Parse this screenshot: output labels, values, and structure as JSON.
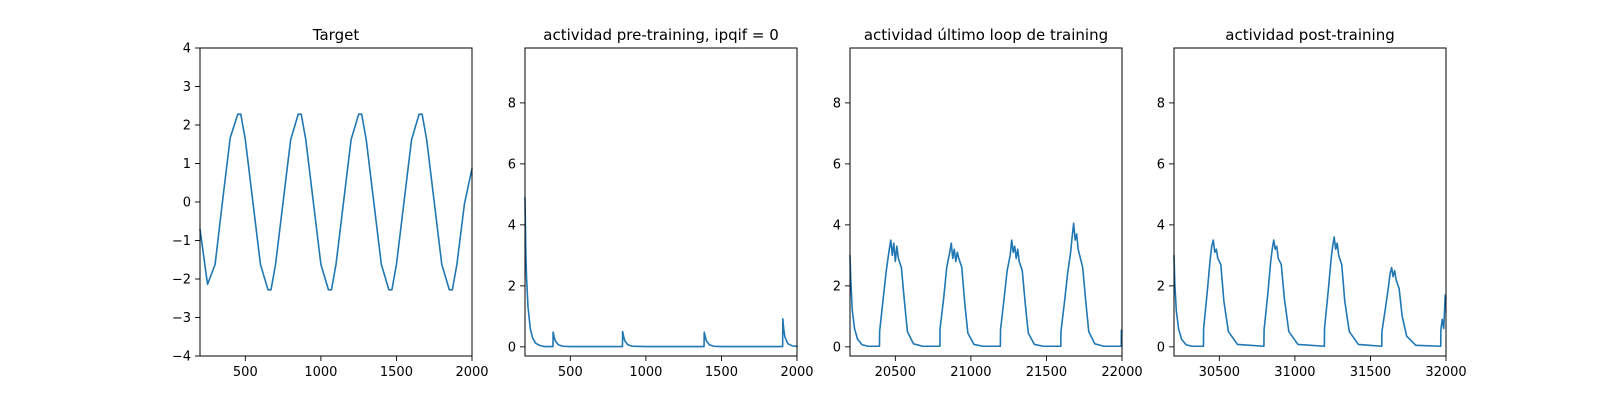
{
  "figure": {
    "background": "#ffffff",
    "line_color": "#1f77b4"
  },
  "chart_data": [
    {
      "type": "line",
      "title": "Target",
      "xlim": [
        200,
        2000
      ],
      "ylim": [
        -4,
        4
      ],
      "xticks": [
        500,
        1000,
        1500,
        2000
      ],
      "xtick_labels": [
        "500",
        "1000",
        "1500",
        "2000"
      ],
      "yticks": [
        -4,
        -3,
        -2,
        -1,
        0,
        1,
        2,
        3,
        4
      ],
      "ytick_labels": [
        "−4",
        "−3",
        "−2",
        "−1",
        "0",
        "1",
        "2",
        "3",
        "4"
      ],
      "grid": false,
      "series": [
        {
          "x": [
            200,
            250,
            300,
            350,
            400,
            450,
            470,
            500,
            550,
            600,
            650,
            670,
            700,
            750,
            800,
            850,
            870,
            900,
            950,
            1000,
            1050,
            1070,
            1100,
            1150,
            1200,
            1250,
            1270,
            1300,
            1350,
            1400,
            1450,
            1470,
            1500,
            1550,
            1600,
            1650,
            1670,
            1700,
            1750,
            1800,
            1850,
            1870,
            1900,
            1950,
            2000
          ],
          "y": [
            -0.71,
            -2.14,
            -1.62,
            0.05,
            1.67,
            2.28,
            2.28,
            1.62,
            0,
            -1.62,
            -2.28,
            -2.28,
            -1.62,
            0,
            1.62,
            2.28,
            2.28,
            1.62,
            0,
            -1.62,
            -2.28,
            -2.28,
            -1.62,
            0,
            1.62,
            2.28,
            2.28,
            1.62,
            0,
            -1.62,
            -2.28,
            -2.28,
            -1.62,
            0,
            1.62,
            2.28,
            2.28,
            1.62,
            0,
            -1.62,
            -2.28,
            -2.28,
            -1.62,
            -0.05,
            0.87
          ]
        }
      ]
    },
    {
      "type": "line",
      "title": "actividad pre-training, ipqif = 0",
      "xlim": [
        200,
        2000
      ],
      "ylim": [
        -0.3,
        9.8
      ],
      "xticks": [
        500,
        1000,
        1500,
        2000
      ],
      "xtick_labels": [
        "500",
        "1000",
        "1500",
        "2000"
      ],
      "yticks": [
        0,
        2,
        4,
        6,
        8
      ],
      "ytick_labels": [
        "0",
        "2",
        "4",
        "6",
        "8"
      ],
      "grid": false,
      "series": [
        {
          "x": [
            200,
            205,
            210,
            220,
            235,
            250,
            270,
            300,
            330,
            385,
            386,
            392,
            400,
            420,
            450,
            500,
            600,
            700,
            845,
            846,
            852,
            860,
            880,
            910,
            1000,
            1100,
            1200,
            1300,
            1385,
            1386,
            1392,
            1400,
            1420,
            1450,
            1500,
            1600,
            1700,
            1800,
            1905,
            1906,
            1912,
            1920,
            1940,
            1970,
            2000
          ],
          "y": [
            4.9,
            3.2,
            2.3,
            1.3,
            0.6,
            0.3,
            0.12,
            0.04,
            0.01,
            0.01,
            0.48,
            0.35,
            0.2,
            0.07,
            0.02,
            0.01,
            0.01,
            0.01,
            0.01,
            0.5,
            0.36,
            0.2,
            0.07,
            0.02,
            0.01,
            0.01,
            0.01,
            0.01,
            0.01,
            0.48,
            0.35,
            0.2,
            0.07,
            0.02,
            0.01,
            0.01,
            0.01,
            0.01,
            0.01,
            0.92,
            0.6,
            0.32,
            0.1,
            0.03,
            0.02
          ]
        }
      ]
    },
    {
      "type": "line",
      "title": "actividad último loop de training",
      "xlim": [
        20200,
        22000
      ],
      "ylim": [
        -0.3,
        9.8
      ],
      "xticks": [
        20500,
        21000,
        21500,
        22000
      ],
      "xtick_labels": [
        "20500",
        "21000",
        "21500",
        "22000"
      ],
      "yticks": [
        0,
        2,
        4,
        6,
        8
      ],
      "ytick_labels": [
        "0",
        "2",
        "4",
        "6",
        "8"
      ],
      "grid": false,
      "series": [
        {
          "x": [
            20200,
            20205,
            20215,
            20230,
            20250,
            20280,
            20320,
            20395,
            20396,
            20420,
            20440,
            20460,
            20470,
            20480,
            20490,
            20500,
            20510,
            20520,
            20540,
            20560,
            20580,
            20620,
            20680,
            20795,
            20796,
            20820,
            20840,
            20860,
            20870,
            20880,
            20890,
            20900,
            20910,
            20920,
            20940,
            20960,
            20980,
            21020,
            21080,
            21195,
            21196,
            21220,
            21240,
            21260,
            21270,
            21280,
            21290,
            21300,
            21310,
            21320,
            21340,
            21360,
            21380,
            21420,
            21480,
            21595,
            21596,
            21620,
            21640,
            21660,
            21670,
            21680,
            21690,
            21700,
            21710,
            21720,
            21740,
            21760,
            21780,
            21820,
            21880,
            21995,
            21996,
            22000
          ],
          "y": [
            3.0,
            2.2,
            1.2,
            0.6,
            0.25,
            0.07,
            0.02,
            0.02,
            0.5,
            1.6,
            2.5,
            3.2,
            3.5,
            3.0,
            3.4,
            2.8,
            3.3,
            2.9,
            2.6,
            1.5,
            0.5,
            0.1,
            0.02,
            0.02,
            0.6,
            1.6,
            2.6,
            3.1,
            3.4,
            2.9,
            3.2,
            2.8,
            3.1,
            2.9,
            2.6,
            1.4,
            0.45,
            0.08,
            0.02,
            0.02,
            0.55,
            1.6,
            2.5,
            3.0,
            3.5,
            3.1,
            3.3,
            2.9,
            3.2,
            2.8,
            2.5,
            1.4,
            0.45,
            0.08,
            0.02,
            0.02,
            0.5,
            1.5,
            2.4,
            3.1,
            3.6,
            4.05,
            3.5,
            3.7,
            3.2,
            3.0,
            2.6,
            1.5,
            0.5,
            0.1,
            0.02,
            0.02,
            0.55,
            0.5
          ]
        }
      ]
    },
    {
      "type": "line",
      "title": "actividad post-training",
      "xlim": [
        30200,
        32000
      ],
      "ylim": [
        -0.3,
        9.8
      ],
      "xticks": [
        30500,
        31000,
        31500,
        32000
      ],
      "xtick_labels": [
        "30500",
        "31000",
        "31500",
        "32000"
      ],
      "yticks": [
        0,
        2,
        4,
        6,
        8
      ],
      "ytick_labels": [
        "0",
        "2",
        "4",
        "6",
        "8"
      ],
      "grid": false,
      "series": [
        {
          "x": [
            30200,
            30205,
            30215,
            30230,
            30250,
            30280,
            30320,
            30395,
            30396,
            30420,
            30440,
            30450,
            30460,
            30470,
            30480,
            30490,
            30510,
            30530,
            30560,
            30620,
            30795,
            30796,
            30820,
            30840,
            30850,
            30860,
            30870,
            30880,
            30890,
            30910,
            30930,
            30960,
            31020,
            31195,
            31196,
            31220,
            31240,
            31250,
            31260,
            31270,
            31280,
            31290,
            31310,
            31330,
            31360,
            31420,
            31575,
            31576,
            31600,
            31620,
            31630,
            31640,
            31650,
            31660,
            31670,
            31690,
            31710,
            31740,
            31800,
            31965,
            31966,
            31975,
            31985,
            31995,
            32000
          ],
          "y": [
            3.0,
            2.1,
            1.2,
            0.6,
            0.25,
            0.07,
            0.02,
            0.02,
            0.6,
            1.8,
            2.9,
            3.3,
            3.5,
            3.1,
            3.2,
            2.9,
            2.7,
            1.5,
            0.5,
            0.08,
            0.02,
            0.55,
            1.7,
            2.8,
            3.2,
            3.5,
            3.2,
            3.3,
            2.9,
            2.7,
            1.6,
            0.5,
            0.08,
            0.02,
            0.6,
            1.8,
            2.9,
            3.3,
            3.6,
            3.2,
            3.4,
            3.0,
            2.7,
            1.5,
            0.5,
            0.08,
            0.02,
            0.5,
            1.3,
            2.0,
            2.4,
            2.6,
            2.3,
            2.5,
            2.2,
            1.9,
            1.0,
            0.35,
            0.05,
            0.02,
            0.55,
            0.9,
            0.6,
            1.7,
            1.6
          ]
        }
      ]
    }
  ]
}
